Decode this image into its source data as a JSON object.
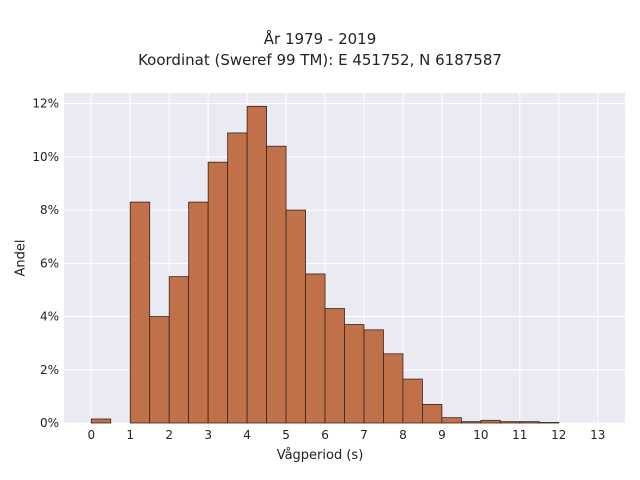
{
  "chart_data": {
    "type": "bar",
    "title": "År 1979 - 2019",
    "subtitle": "Koordinat (Sweref 99 TM): E 451752, N 6187587",
    "xlabel": "Vågperiod (s)",
    "ylabel": "Andel",
    "bin_width": 0.5,
    "bin_starts": [
      0,
      0.5,
      1,
      1.5,
      2,
      2.5,
      3,
      3.5,
      4,
      4.5,
      5,
      5.5,
      6,
      6.5,
      7,
      7.5,
      8,
      8.5,
      9,
      9.5,
      10,
      10.5,
      11,
      11.5,
      12,
      12.5
    ],
    "values": [
      0.15,
      0,
      8.3,
      4.0,
      5.5,
      8.3,
      9.8,
      10.9,
      11.9,
      10.4,
      8.0,
      5.6,
      4.3,
      3.7,
      3.5,
      2.6,
      1.65,
      0.7,
      0.2,
      0.05,
      0.1,
      0.05,
      0.05,
      0.02,
      0,
      0
    ],
    "x_ticks": [
      "0",
      "1",
      "2",
      "3",
      "4",
      "5",
      "6",
      "7",
      "8",
      "9",
      "10",
      "11",
      "12",
      "13"
    ],
    "y_ticks": [
      "0%",
      "2%",
      "4%",
      "6%",
      "8%",
      "10%",
      "12%"
    ],
    "xlim": [
      -0.7,
      13.7
    ],
    "ylim": [
      0,
      12.4
    ],
    "grid": true,
    "colors": {
      "bar_fill": "#c1714a",
      "bar_edge": "#3a2418",
      "plot_bg": "#eaeaf2",
      "grid": "#ffffff"
    }
  }
}
